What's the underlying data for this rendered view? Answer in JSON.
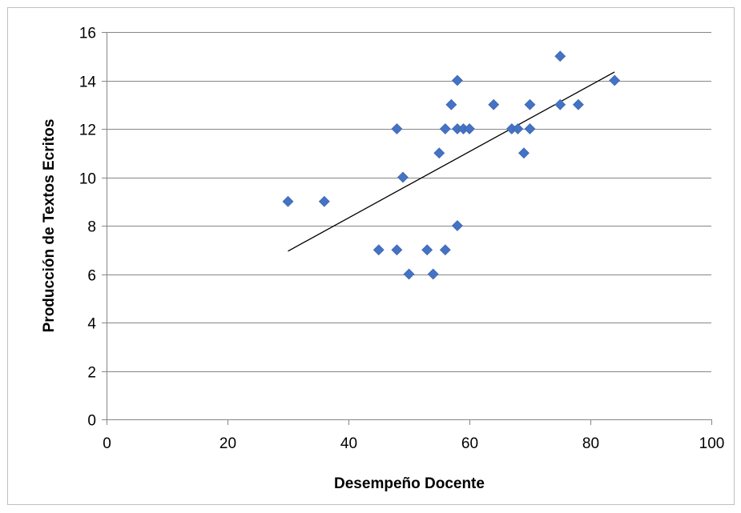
{
  "chart_data": {
    "type": "scatter",
    "title": "",
    "xlabel": "Desempeño Docente",
    "ylabel": "Producción de Textos Ecritos",
    "xlim": [
      0,
      100
    ],
    "ylim": [
      0,
      16
    ],
    "x_ticks": [
      0,
      20,
      40,
      60,
      80,
      100
    ],
    "y_ticks": [
      0,
      2,
      4,
      6,
      8,
      10,
      12,
      14,
      16
    ],
    "grid": "horizontal",
    "legend": "none",
    "marker": "diamond",
    "marker_color": "#4472C4",
    "points": [
      {
        "x": 30,
        "y": 9
      },
      {
        "x": 36,
        "y": 9
      },
      {
        "x": 45,
        "y": 7
      },
      {
        "x": 48,
        "y": 7
      },
      {
        "x": 48,
        "y": 12
      },
      {
        "x": 49,
        "y": 10
      },
      {
        "x": 50,
        "y": 6
      },
      {
        "x": 53,
        "y": 7
      },
      {
        "x": 54,
        "y": 6
      },
      {
        "x": 55,
        "y": 11
      },
      {
        "x": 56,
        "y": 7
      },
      {
        "x": 56,
        "y": 12
      },
      {
        "x": 57,
        "y": 13
      },
      {
        "x": 58,
        "y": 14
      },
      {
        "x": 58,
        "y": 12
      },
      {
        "x": 58,
        "y": 8
      },
      {
        "x": 59,
        "y": 12
      },
      {
        "x": 60,
        "y": 12
      },
      {
        "x": 64,
        "y": 13
      },
      {
        "x": 67,
        "y": 12
      },
      {
        "x": 68,
        "y": 12
      },
      {
        "x": 69,
        "y": 11
      },
      {
        "x": 70,
        "y": 13
      },
      {
        "x": 70,
        "y": 12
      },
      {
        "x": 75,
        "y": 15
      },
      {
        "x": 75,
        "y": 13
      },
      {
        "x": 78,
        "y": 13
      },
      {
        "x": 84,
        "y": 14
      }
    ],
    "trendline": {
      "type": "linear",
      "x": [
        30,
        84
      ],
      "y": [
        6.95,
        14.35
      ],
      "color": "#000000"
    }
  }
}
